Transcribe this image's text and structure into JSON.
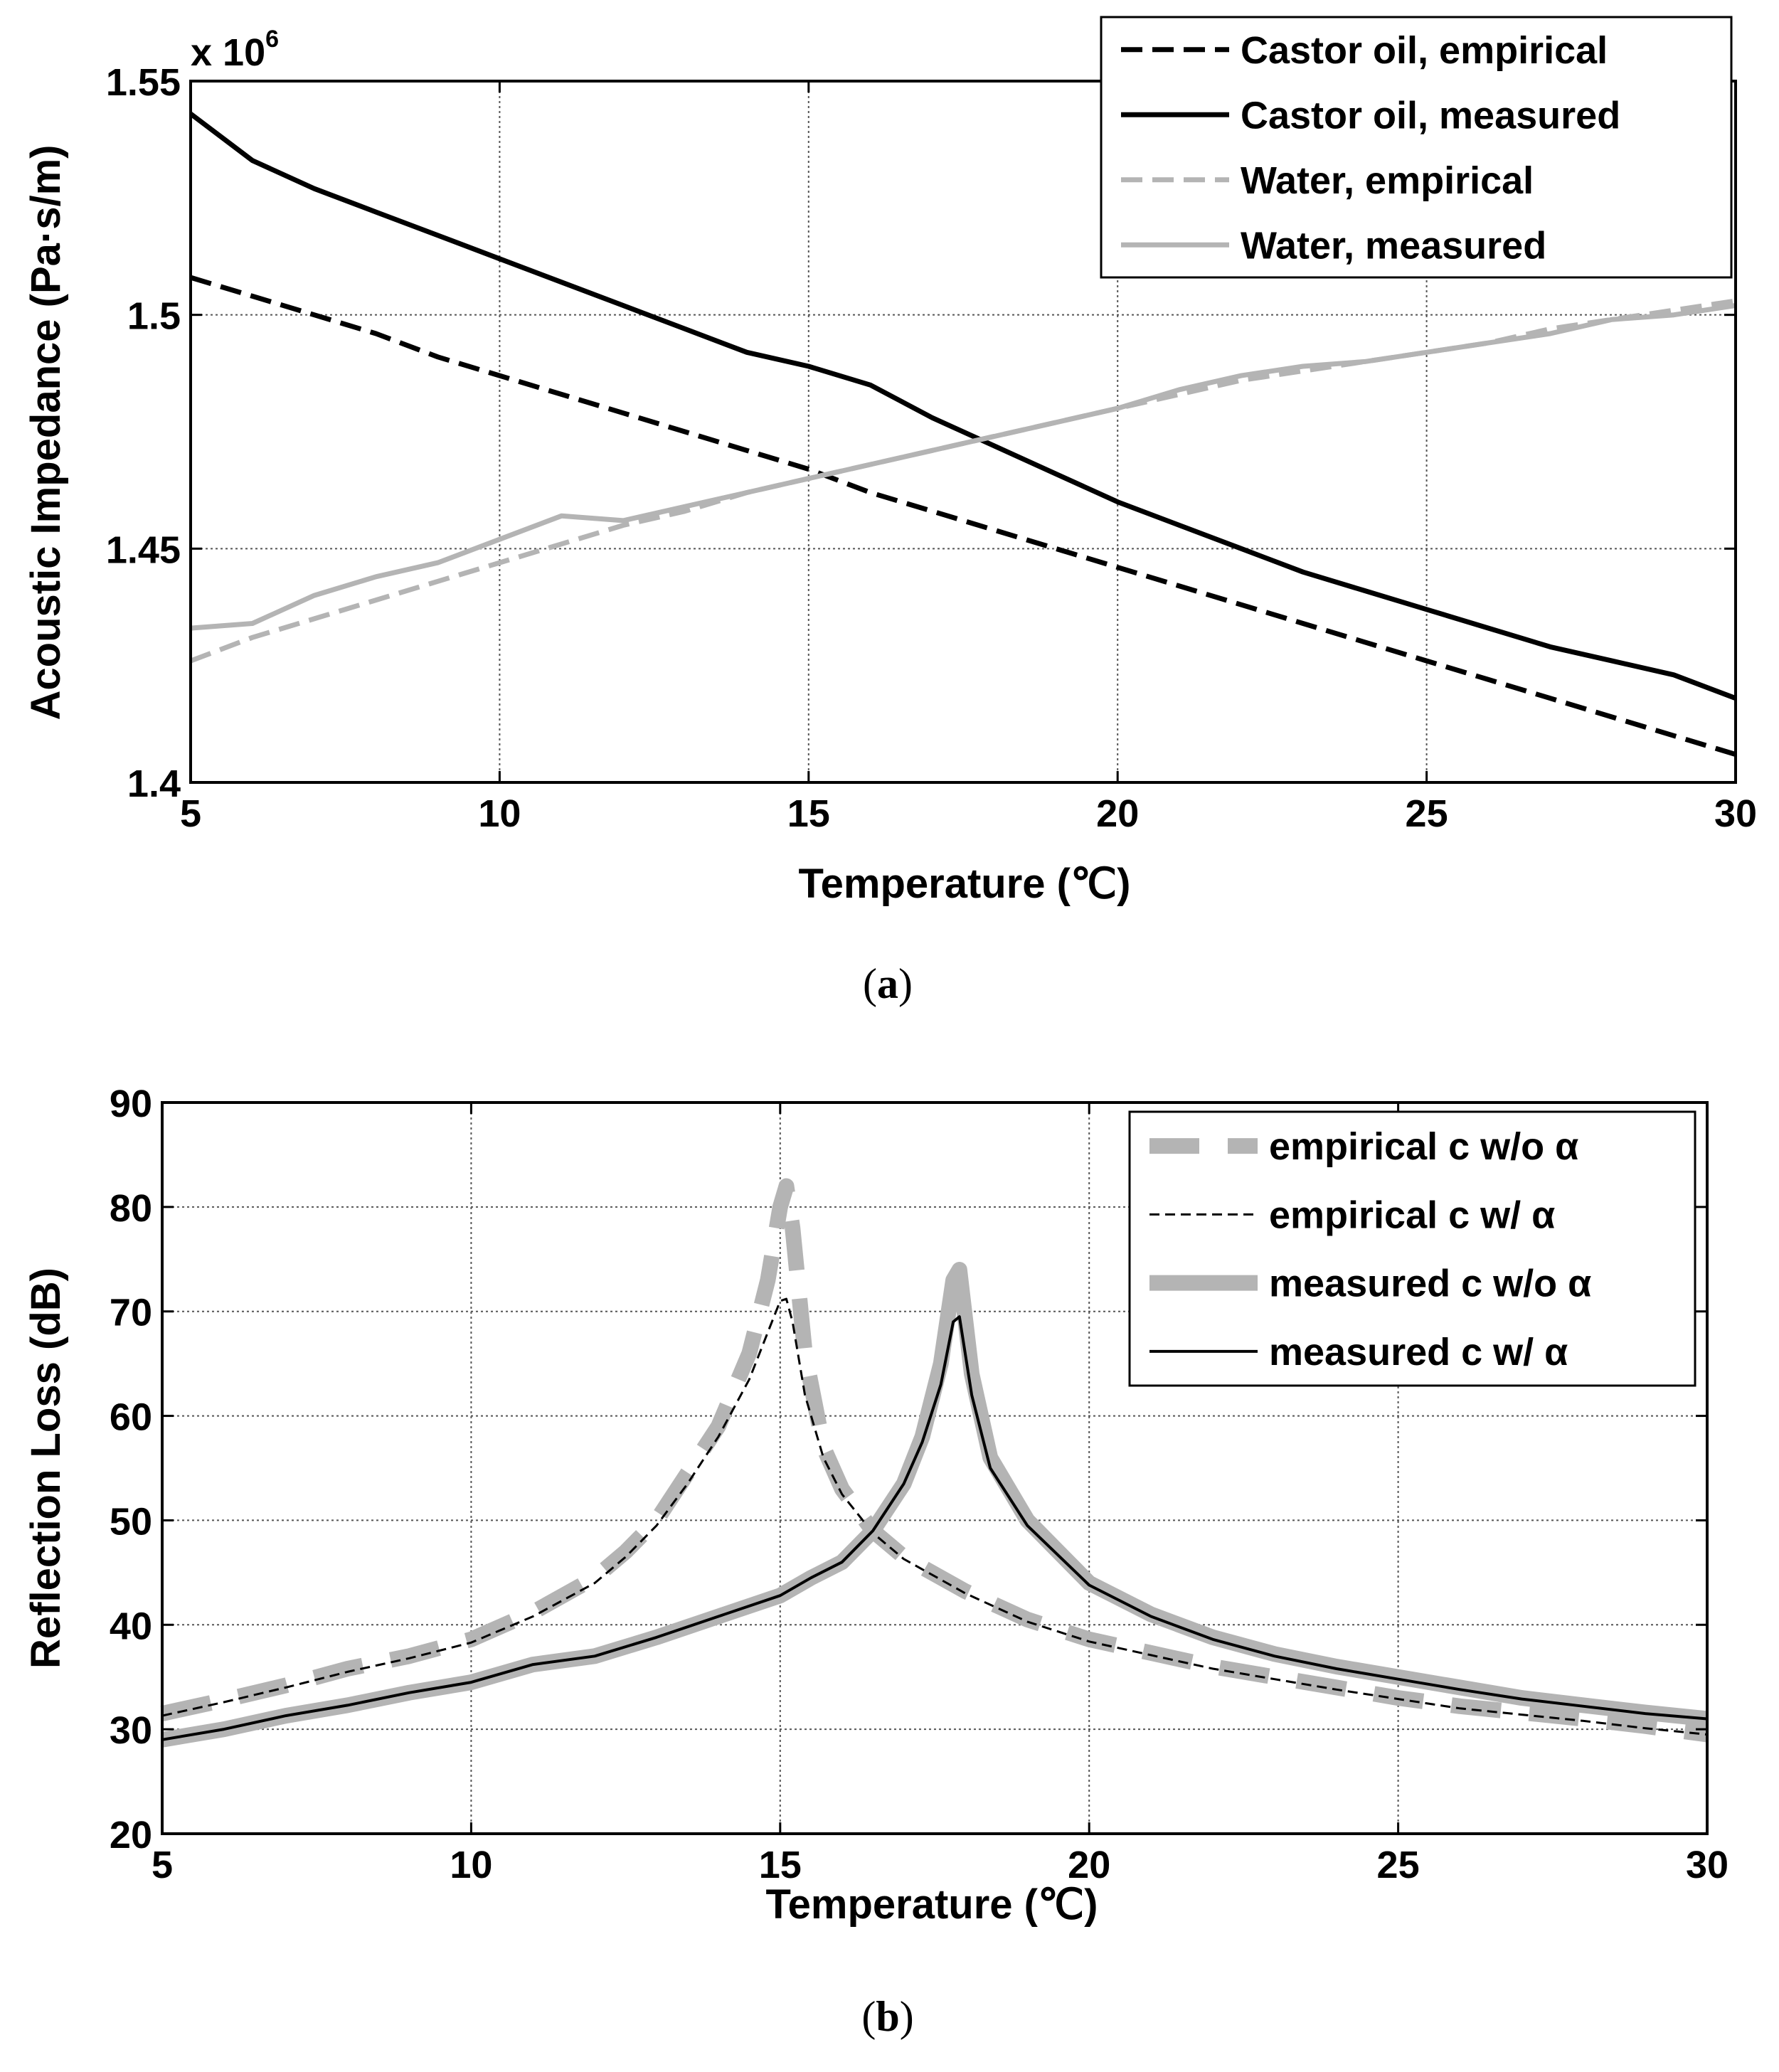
{
  "figure": {
    "caption_a": {
      "open": "(",
      "letter": "a",
      "close": ")"
    },
    "caption_b": {
      "open": "(",
      "letter": "b",
      "close": ")"
    }
  },
  "chart_data": [
    {
      "id": "a",
      "type": "line",
      "title": "",
      "xlabel": "Temperature (℃)",
      "ylabel": "Acoustic Impedance (Pa·s/m)",
      "y_multiplier_label": {
        "base": "x 10",
        "exponent": "6"
      },
      "xlim": [
        5,
        30
      ],
      "ylim": [
        1.4,
        1.55
      ],
      "xticks": [
        5,
        10,
        15,
        20,
        25,
        30
      ],
      "xtick_labels": [
        "5",
        "10",
        "15",
        "20",
        "25",
        "30"
      ],
      "yticks": [
        1.4,
        1.45,
        1.5,
        1.55
      ],
      "ytick_labels": [
        "1.4",
        "1.45",
        "1.5",
        "1.55"
      ],
      "grid": true,
      "legend_position": "top-right",
      "x": [
        5,
        6,
        7,
        8,
        9,
        10,
        11,
        12,
        13,
        14,
        15,
        16,
        17,
        18,
        19,
        20,
        21,
        22,
        23,
        24,
        25,
        26,
        27,
        28,
        29,
        30
      ],
      "series": [
        {
          "name": "Castor oil, empirical",
          "color": "#000000",
          "style": "dashed",
          "values": [
            1.508,
            1.504,
            1.5,
            1.496,
            1.491,
            1.487,
            1.483,
            1.479,
            1.475,
            1.471,
            1.467,
            1.462,
            1.458,
            1.454,
            1.45,
            1.446,
            1.442,
            1.438,
            1.434,
            1.43,
            1.426,
            1.422,
            1.418,
            1.414,
            1.41,
            1.406
          ]
        },
        {
          "name": "Castor oil, measured",
          "color": "#000000",
          "style": "solid",
          "values": [
            1.543,
            1.533,
            1.527,
            1.522,
            1.517,
            1.512,
            1.507,
            1.502,
            1.497,
            1.492,
            1.489,
            1.485,
            1.478,
            1.472,
            1.466,
            1.46,
            1.455,
            1.45,
            1.445,
            1.441,
            1.437,
            1.433,
            1.429,
            1.426,
            1.423,
            1.418
          ]
        },
        {
          "name": "Water, empirical",
          "color": "#b4b4b4",
          "style": "dashed",
          "values": [
            1.426,
            1.431,
            1.435,
            1.439,
            1.443,
            1.447,
            1.451,
            1.455,
            1.458,
            1.462,
            1.465,
            1.468,
            1.471,
            1.474,
            1.477,
            1.48,
            1.483,
            1.486,
            1.488,
            1.49,
            1.492,
            1.494,
            1.497,
            1.499,
            1.501,
            1.503
          ]
        },
        {
          "name": "Water, measured",
          "color": "#b4b4b4",
          "style": "solid",
          "values": [
            1.433,
            1.434,
            1.44,
            1.444,
            1.447,
            1.452,
            1.457,
            1.456,
            1.459,
            1.462,
            1.465,
            1.468,
            1.471,
            1.474,
            1.477,
            1.48,
            1.484,
            1.487,
            1.489,
            1.49,
            1.492,
            1.494,
            1.496,
            1.499,
            1.5,
            1.502
          ]
        }
      ]
    },
    {
      "id": "b",
      "type": "line",
      "title": "",
      "xlabel": "Temperature (℃)",
      "ylabel": "Reflection Loss (dB)",
      "xlim": [
        5,
        30
      ],
      "ylim": [
        20,
        90
      ],
      "xticks": [
        5,
        10,
        15,
        20,
        25,
        30
      ],
      "xtick_labels": [
        "5",
        "10",
        "15",
        "20",
        "25",
        "30"
      ],
      "yticks": [
        20,
        30,
        40,
        50,
        60,
        70,
        80,
        90
      ],
      "ytick_labels": [
        "20",
        "30",
        "40",
        "50",
        "60",
        "70",
        "80",
        "90"
      ],
      "grid": true,
      "legend_position": "top-right",
      "series": [
        {
          "name": "empirical c w/o α",
          "color": "#b4b4b4",
          "style": "dashed-thick",
          "x": [
            5,
            6,
            7,
            8,
            9,
            10,
            11,
            12,
            12.5,
            13,
            13.5,
            14,
            14.5,
            14.8,
            15,
            15.1,
            15.2,
            15.4,
            15.7,
            16,
            16.5,
            17,
            18,
            19,
            20,
            21,
            22,
            23,
            24,
            25,
            26,
            27,
            28,
            29,
            30
          ],
          "values": [
            31.5,
            32.8,
            34.2,
            35.8,
            37.0,
            38.6,
            41.2,
            44.5,
            47.0,
            50.0,
            54.5,
            59.0,
            66.0,
            73.0,
            80.0,
            82.0,
            78.0,
            66.0,
            57.0,
            53.0,
            49.0,
            46.5,
            43.2,
            40.5,
            38.6,
            37.3,
            36.0,
            35.0,
            34.0,
            33.0,
            32.2,
            31.6,
            31.0,
            30.3,
            29.5
          ]
        },
        {
          "name": "empirical c w/ α",
          "color": "#000000",
          "style": "dashed-thin",
          "x": [
            5,
            6,
            7,
            8,
            9,
            10,
            11,
            12,
            12.5,
            13,
            13.5,
            14,
            14.5,
            14.8,
            15,
            15.1,
            15.2,
            15.4,
            15.7,
            16,
            16.5,
            17,
            18,
            19,
            20,
            21,
            22,
            23,
            24,
            25,
            26,
            27,
            28,
            29,
            30
          ],
          "values": [
            31.3,
            32.6,
            34.0,
            35.5,
            36.8,
            38.3,
            40.8,
            44.0,
            46.5,
            49.5,
            53.5,
            58.0,
            63.5,
            68.0,
            71.0,
            71.2,
            69.0,
            62.0,
            56.0,
            52.5,
            48.8,
            46.3,
            43.0,
            40.3,
            38.4,
            37.1,
            35.8,
            34.8,
            33.8,
            32.9,
            32.0,
            31.4,
            30.8,
            30.1,
            29.5
          ]
        },
        {
          "name": "measured c w/o α",
          "color": "#b4b4b4",
          "style": "solid-thick",
          "x": [
            5,
            6,
            7,
            8,
            9,
            10,
            11,
            12,
            13,
            14,
            15,
            15.5,
            16,
            16.5,
            17,
            17.3,
            17.6,
            17.8,
            17.9,
            18.1,
            18.4,
            19,
            20,
            21,
            22,
            23,
            24,
            25,
            26,
            27,
            28,
            29,
            30
          ],
          "values": [
            29.0,
            30.0,
            31.3,
            32.3,
            33.5,
            34.5,
            36.2,
            37.0,
            38.8,
            40.8,
            42.8,
            44.5,
            46.0,
            49.0,
            53.5,
            58.0,
            65.0,
            73.0,
            74.0,
            64.0,
            56.0,
            50.0,
            44.0,
            41.0,
            38.8,
            37.2,
            36.0,
            35.0,
            34.0,
            33.0,
            32.3,
            31.6,
            31.0
          ]
        },
        {
          "name": "measured c w/ α",
          "color": "#000000",
          "style": "solid-thin",
          "x": [
            5,
            6,
            7,
            8,
            9,
            10,
            11,
            12,
            13,
            14,
            15,
            15.5,
            16,
            16.5,
            17,
            17.3,
            17.6,
            17.8,
            17.9,
            18.1,
            18.4,
            19,
            20,
            21,
            22,
            23,
            24,
            25,
            26,
            27,
            28,
            29,
            30
          ],
          "values": [
            29.0,
            30.0,
            31.3,
            32.3,
            33.5,
            34.5,
            36.2,
            37.0,
            38.8,
            40.8,
            42.8,
            44.5,
            46.0,
            49.0,
            53.5,
            57.5,
            63.0,
            69.0,
            69.5,
            62.0,
            55.0,
            49.5,
            43.8,
            40.8,
            38.6,
            37.0,
            35.8,
            34.8,
            33.8,
            32.9,
            32.2,
            31.5,
            31.0
          ]
        }
      ]
    }
  ]
}
